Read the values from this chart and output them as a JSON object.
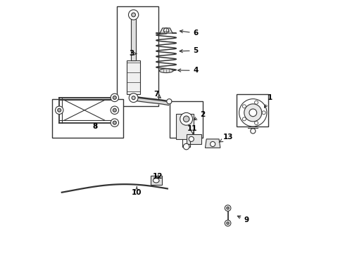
{
  "bg_color": "#ffffff",
  "line_color": "#333333",
  "label_color": "#000000",
  "fig_width": 4.9,
  "fig_height": 3.6,
  "dpi": 100,
  "label_map": {
    "1": [
      0.888,
      0.615,
      0.86,
      0.565
    ],
    "2": [
      0.62,
      0.548,
      0.575,
      0.52
    ],
    "3": [
      0.338,
      0.79,
      0.36,
      0.79
    ],
    "4": [
      0.593,
      0.723,
      0.51,
      0.724
    ],
    "5": [
      0.593,
      0.802,
      0.517,
      0.8
    ],
    "6": [
      0.593,
      0.872,
      0.518,
      0.882
    ],
    "7": [
      0.435,
      0.63,
      0.455,
      0.612
    ],
    "8": [
      0.193,
      0.5,
      0.2,
      0.51
    ],
    "9": [
      0.795,
      0.128,
      0.748,
      0.148
    ],
    "10": [
      0.358,
      0.238,
      0.358,
      0.26
    ],
    "11": [
      0.578,
      0.493,
      0.582,
      0.468
    ],
    "12": [
      0.44,
      0.302,
      0.45,
      0.285
    ],
    "13": [
      0.72,
      0.458,
      0.685,
      0.437
    ]
  }
}
